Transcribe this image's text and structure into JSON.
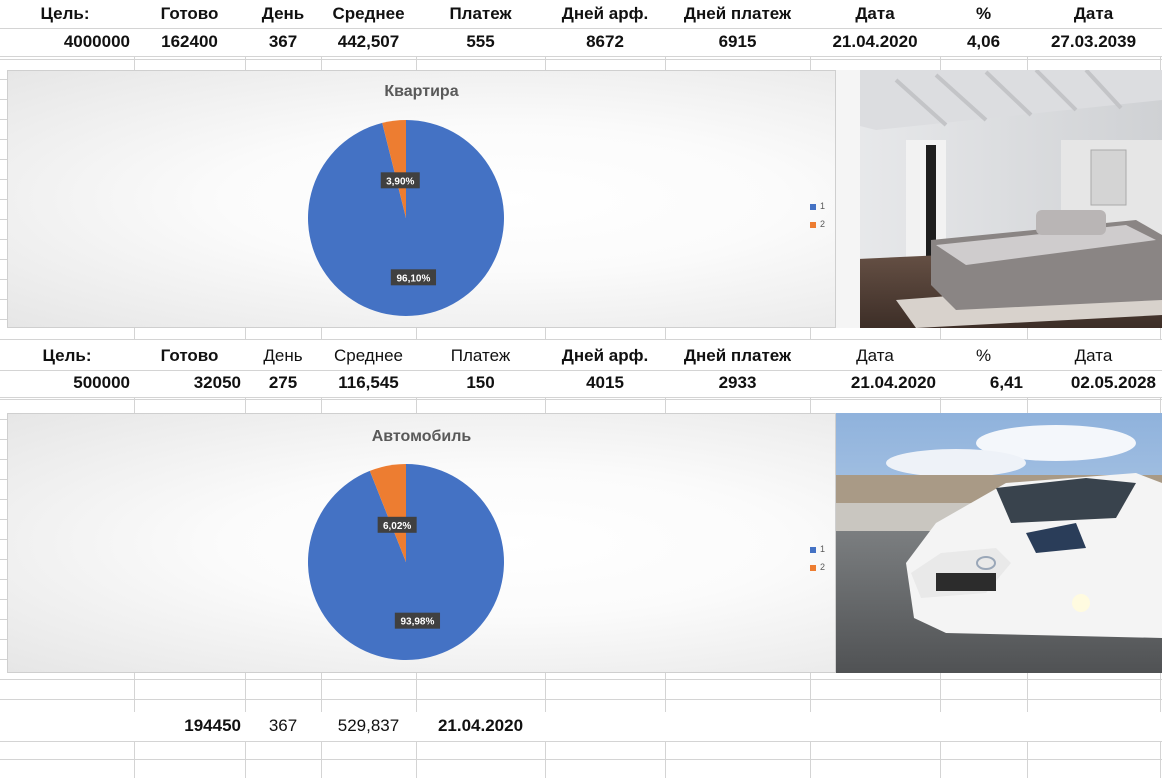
{
  "table1": {
    "headers": [
      "Цель:",
      "Готово",
      "День",
      "Среднее",
      "Платеж",
      "Дней арф.",
      "Дней платеж",
      "Дата",
      "%",
      "Дата"
    ],
    "values": [
      "4000000",
      "162400",
      "367",
      "442,507",
      "555",
      "8672",
      "6915",
      "21.04.2020",
      "4,06",
      "27.03.2039"
    ]
  },
  "chart1": {
    "title": "Квартира",
    "slices": [
      {
        "legend": "1",
        "value": 96.1,
        "label": "96,10%",
        "color": "#4472c4"
      },
      {
        "legend": "2",
        "value": 3.9,
        "label": "3,90%",
        "color": "#ed7d31"
      }
    ],
    "image_alt": "bedroom-photo"
  },
  "table2": {
    "headers": [
      "Цель:",
      "Готово",
      "День",
      "Среднее",
      "Платеж",
      "Дней арф.",
      "Дней платеж",
      "Дата",
      "%",
      "Дата"
    ],
    "values": [
      "500000",
      "32050",
      "275",
      "116,545",
      "150",
      "4015",
      "2933",
      "21.04.2020",
      "6,41",
      "02.05.2028"
    ]
  },
  "chart2": {
    "title": "Автомобиль",
    "slices": [
      {
        "legend": "1",
        "value": 93.98,
        "label": "93,98%",
        "color": "#4472c4"
      },
      {
        "legend": "2",
        "value": 6.02,
        "label": "6,02%",
        "color": "#ed7d31"
      }
    ],
    "image_alt": "car-photo"
  },
  "totals": {
    "values": [
      "194450",
      "367",
      "529,837",
      "21.04.2020"
    ]
  },
  "chart_data": [
    {
      "type": "pie",
      "title": "Квартира",
      "categories": [
        "1",
        "2"
      ],
      "values": [
        96.1,
        3.9
      ],
      "data_labels": [
        "96,10%",
        "3,90%"
      ],
      "legend": "right"
    },
    {
      "type": "pie",
      "title": "Автомобиль",
      "categories": [
        "1",
        "2"
      ],
      "values": [
        93.98,
        6.02
      ],
      "data_labels": [
        "93,98%",
        "6,02%"
      ],
      "legend": "right"
    }
  ]
}
